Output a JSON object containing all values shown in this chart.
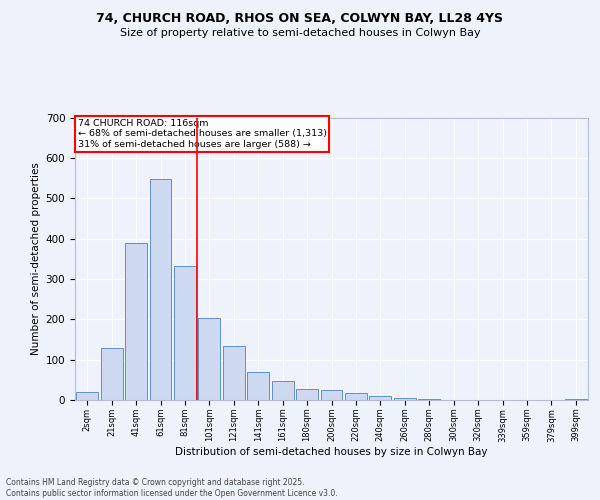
{
  "title_line1": "74, CHURCH ROAD, RHOS ON SEA, COLWYN BAY, LL28 4YS",
  "title_line2": "Size of property relative to semi-detached houses in Colwyn Bay",
  "xlabel": "Distribution of semi-detached houses by size in Colwyn Bay",
  "ylabel": "Number of semi-detached properties",
  "footer_line1": "Contains HM Land Registry data © Crown copyright and database right 2025.",
  "footer_line2": "Contains public sector information licensed under the Open Government Licence v3.0.",
  "annotation_line1": "74 CHURCH ROAD: 116sqm",
  "annotation_line2": "← 68% of semi-detached houses are smaller (1,313)",
  "annotation_line3": "31% of semi-detached houses are larger (588) →",
  "bar_color": "#ccd9f0",
  "bar_edge_color": "#6090c8",
  "categories": [
    "2sqm",
    "21sqm",
    "41sqm",
    "61sqm",
    "81sqm",
    "101sqm",
    "121sqm",
    "141sqm",
    "161sqm",
    "180sqm",
    "200sqm",
    "220sqm",
    "240sqm",
    "260sqm",
    "280sqm",
    "300sqm",
    "320sqm",
    "339sqm",
    "359sqm",
    "379sqm",
    "399sqm"
  ],
  "values": [
    20,
    128,
    388,
    548,
    332,
    204,
    133,
    70,
    46,
    27,
    25,
    18,
    10,
    6,
    2,
    1,
    0,
    0,
    0,
    0,
    3
  ],
  "ylim": [
    0,
    700
  ],
  "yticks": [
    0,
    100,
    200,
    300,
    400,
    500,
    600,
    700
  ],
  "red_line_x": 4.5,
  "background_color": "#eef2fb",
  "grid_color": "#ffffff",
  "spine_color": "#b0bcd8"
}
